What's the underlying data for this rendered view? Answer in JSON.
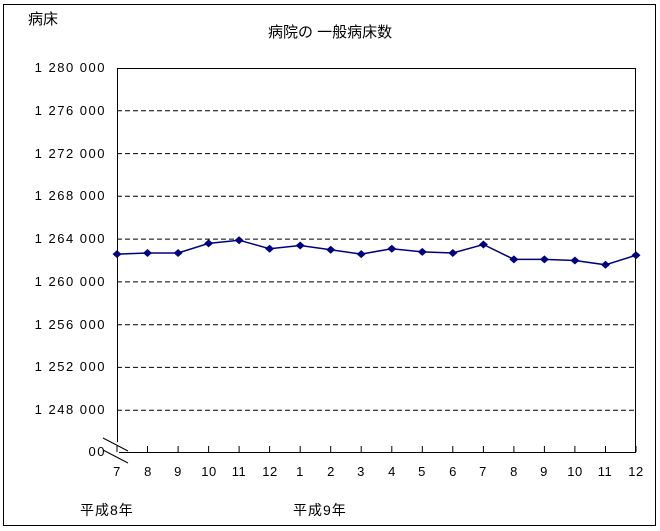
{
  "window": {
    "background_color": "#ffffff",
    "border_color": "#000000"
  },
  "chart_data": {
    "type": "line",
    "title": "病院の 一般病床数",
    "ylabel": "病床",
    "xlabel": "",
    "legend_position": "none",
    "marker": "diamond",
    "line_color": "#000080",
    "grid": "dashed-horizontal",
    "categories": [
      "7",
      "8",
      "9",
      "10",
      "11",
      "12",
      "1",
      "2",
      "3",
      "4",
      "5",
      "6",
      "7",
      "8",
      "9",
      "10",
      "11",
      "12"
    ],
    "x_groups": [
      {
        "label": "平成8年",
        "start_index": 0
      },
      {
        "label": "平成9年",
        "start_index": 6
      }
    ],
    "series": [
      {
        "name": "病院の一般病床数",
        "color": "#000080",
        "values": [
          1262600,
          1262700,
          1262700,
          1263600,
          1263900,
          1263100,
          1263400,
          1263000,
          1262600,
          1263100,
          1262800,
          1262700,
          1263500,
          1262100,
          1262100,
          1262000,
          1261600,
          1262500
        ]
      }
    ],
    "y_axis": {
      "tick_values": [
        1280000,
        1276000,
        1272000,
        1268000,
        1264000,
        1260000,
        1256000,
        1252000,
        1248000
      ],
      "tick_labels": [
        "1 280 000",
        "1 276 000",
        "1 272 000",
        "1 268 000",
        "1 264 000",
        "1 260 000",
        "1 256 000",
        "1 252 000",
        "1 248 000"
      ],
      "break_label": "00",
      "axis_break": true,
      "ylim": [
        1246000,
        1280000
      ]
    }
  }
}
